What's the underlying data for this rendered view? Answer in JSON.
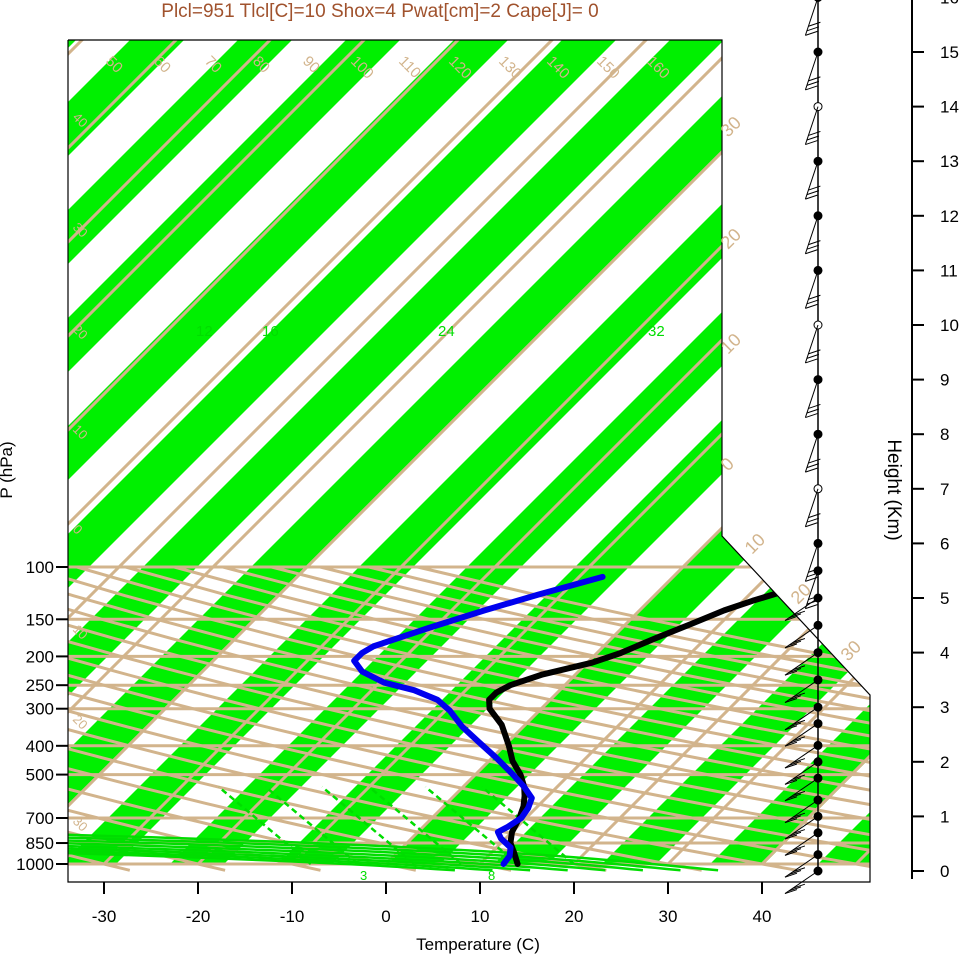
{
  "title": "Plcl=951 Tlcl[C]=10 Shox=4 Pwat[cm]=2 Cape[J]= 0",
  "chart_data": {
    "type": "line",
    "title": "Plcl=951 Tlcl[C]=10 Shox=4 Pwat[cm]=2 Cape[J]= 0",
    "xlabel": "Temperature (C)",
    "ylabel": "P (hPa)",
    "right_ylabel": "Height (Km)",
    "xlim": [
      -33,
      52
    ],
    "x_ticks": [
      -30,
      -20,
      -10,
      0,
      10,
      20,
      30,
      40
    ],
    "y_ticks": [
      100,
      150,
      200,
      250,
      300,
      400,
      500,
      700,
      850,
      1000
    ],
    "height_ticks": [
      0,
      1,
      2,
      3,
      4,
      5,
      6,
      7,
      8,
      9,
      10,
      11,
      12,
      13,
      14,
      15,
      16
    ],
    "skew_labels": [
      50,
      60,
      70,
      80,
      90,
      100,
      110,
      120,
      130,
      140,
      150,
      160
    ],
    "isotherm_labels": [
      30,
      20,
      10,
      0,
      10,
      20,
      30
    ],
    "left_skew_labels": [
      40,
      30,
      20,
      10,
      0,
      10,
      20,
      30
    ],
    "mixing_ratio_labels": [
      12,
      16,
      24,
      32
    ],
    "mixing_bottom_labels": [
      3,
      8
    ],
    "series": [
      {
        "name": "",
        "color": "#000000",
        "points": [
          [
            14.0,
            1000
          ],
          [
            12.5,
            920
          ],
          [
            11.0,
            850
          ],
          [
            10.0,
            780
          ],
          [
            9.3,
            700
          ],
          [
            8.5,
            640
          ],
          [
            7.5,
            590
          ],
          [
            6.5,
            550
          ],
          [
            4.8,
            500
          ],
          [
            2.5,
            450
          ],
          [
            0.5,
            400
          ],
          [
            -2.5,
            340
          ],
          [
            -5.5,
            300
          ],
          [
            -6.5,
            280
          ],
          [
            -6.5,
            265
          ],
          [
            -5.8,
            250
          ],
          [
            -3.5,
            230
          ],
          [
            0.5,
            210
          ],
          [
            2.5,
            195
          ],
          [
            4.5,
            175
          ],
          [
            7.0,
            155
          ],
          [
            9.0,
            140
          ],
          [
            11.0,
            130
          ],
          [
            13.5,
            120
          ],
          [
            15.5,
            114
          ],
          [
            17.5,
            108
          ]
        ]
      },
      {
        "name": "",
        "color": "#0000ee",
        "points": [
          [
            12.5,
            1000
          ],
          [
            12.3,
            940
          ],
          [
            11.5,
            880
          ],
          [
            9.5,
            820
          ],
          [
            8.5,
            780
          ],
          [
            9.0,
            750
          ],
          [
            9.5,
            700
          ],
          [
            9.2,
            650
          ],
          [
            8.5,
            600
          ],
          [
            6.5,
            550
          ],
          [
            4.0,
            500
          ],
          [
            0.5,
            440
          ],
          [
            -3.0,
            390
          ],
          [
            -6.5,
            345
          ],
          [
            -9.5,
            305
          ],
          [
            -12.0,
            280
          ],
          [
            -15.5,
            260
          ],
          [
            -19.5,
            245
          ],
          [
            -23.0,
            225
          ],
          [
            -25.0,
            207
          ],
          [
            -25.0,
            195
          ],
          [
            -24.5,
            185
          ],
          [
            -20.5,
            160
          ],
          [
            -16.5,
            140
          ],
          [
            -12.5,
            124
          ],
          [
            -7.5,
            108
          ]
        ]
      }
    ],
    "wind_profile_heights_km": [
      0,
      0.3,
      0.7,
      1,
      1.3,
      1.7,
      2,
      2.3,
      2.7,
      3,
      3.5,
      4,
      4.5,
      5,
      5.5,
      6,
      7,
      8,
      9,
      10,
      11,
      12,
      13,
      14,
      15,
      16
    ]
  }
}
